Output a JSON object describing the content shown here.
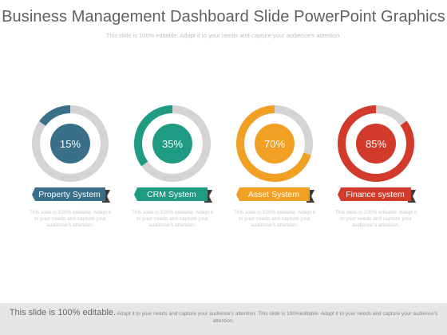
{
  "header": {
    "title": "Business Management Dashboard Slide PowerPoint Graphics",
    "subtitle": "This slide is 100% editable. Adapt it to your needs and capture your audience's attention."
  },
  "cards": [
    {
      "label": "Property System",
      "value_text": "15%",
      "value": 15,
      "color": "#3a6f8a",
      "description": "This slide is 100% editable. Adapt it to your needs and capture your audience's attention."
    },
    {
      "label": "CRM System",
      "value_text": "35%",
      "value": 35,
      "color": "#1f9a83",
      "description": "This slide is 100% editable. Adapt it to your needs and capture your audience's attention."
    },
    {
      "label": "Asset System",
      "value_text": "70%",
      "value": 70,
      "color": "#f1a024",
      "description": "This slide is 100% editable. Adapt it to your needs and capture your audience's attention."
    },
    {
      "label": "Finance system",
      "value_text": "85%",
      "value": 85,
      "color": "#d23a2c",
      "description": "This slide is 100% editable. Adapt it to your needs and capture your audience's attention."
    }
  ],
  "footer": {
    "lead": "This slide is 100% editable.",
    "text": "Adapt it to your needs and capture your audience's attention. This slide is 100%editable. Adapt it to your needs and capture your audience's attention."
  },
  "colors": {
    "track": "#d4d4d4"
  }
}
